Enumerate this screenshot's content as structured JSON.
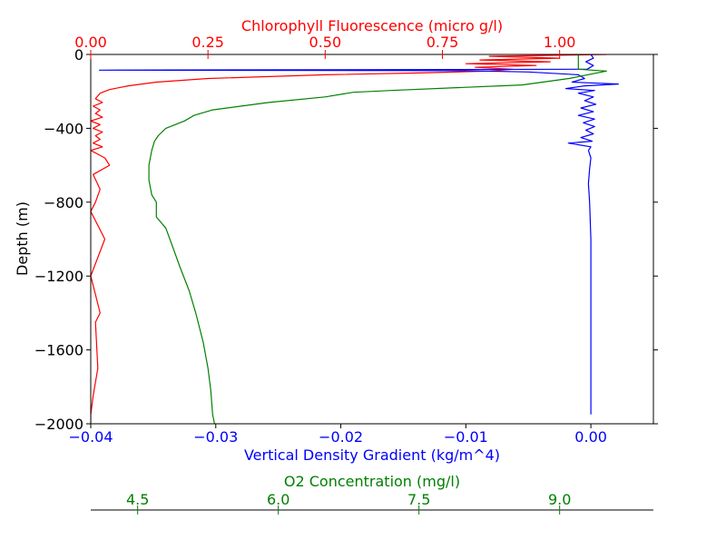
{
  "chart_data": {
    "type": "line",
    "title": "",
    "ylabel": "Depth (m)",
    "ylim": [
      -2000,
      0
    ],
    "yticks": [
      "0",
      "−400",
      "−800",
      "−1200",
      "−1600",
      "−2000"
    ],
    "yticks_values": [
      0,
      -400,
      -800,
      -1200,
      -1600,
      -2000
    ],
    "axes": {
      "top": {
        "label": "Chlorophyll Fluorescence (micro g/l)",
        "color": "#ff0000",
        "xlim": [
          0.0,
          1.2
        ],
        "ticks": [
          "0.00",
          "0.25",
          "0.50",
          "0.75",
          "1.00"
        ],
        "tick_values": [
          0.0,
          0.25,
          0.5,
          0.75,
          1.0
        ]
      },
      "bottom": {
        "label": "Vertical Density Gradient (kg/m^4)",
        "color": "#0000ff",
        "xlim": [
          -0.04,
          0.005
        ],
        "ticks": [
          "−0.04",
          "−0.03",
          "−0.02",
          "−0.01",
          "0.00"
        ],
        "tick_values": [
          -0.04,
          -0.03,
          -0.02,
          -0.01,
          0.0
        ]
      },
      "o2": {
        "label": "O2 Concentration (mg/l)",
        "color": "#008000",
        "xlim": [
          4.0,
          10.0
        ],
        "ticks": [
          "4.5",
          "6.0",
          "7.5",
          "9.0"
        ],
        "tick_values": [
          4.5,
          6.0,
          7.5,
          9.0
        ]
      }
    },
    "series": [
      {
        "axis": "top",
        "color": "#ff0000",
        "points": [
          [
            1.1,
            0
          ],
          [
            0.85,
            -10
          ],
          [
            1.0,
            -20
          ],
          [
            0.83,
            -30
          ],
          [
            0.98,
            -40
          ],
          [
            0.8,
            -50
          ],
          [
            0.95,
            -60
          ],
          [
            0.82,
            -70
          ],
          [
            0.9,
            -80
          ],
          [
            0.85,
            -90
          ],
          [
            0.7,
            -100
          ],
          [
            0.5,
            -110
          ],
          [
            0.25,
            -130
          ],
          [
            0.14,
            -150
          ],
          [
            0.08,
            -170
          ],
          [
            0.04,
            -190
          ],
          [
            0.02,
            -210
          ],
          [
            0.01,
            -240
          ],
          [
            0.025,
            -260
          ],
          [
            0.005,
            -280
          ],
          [
            0.02,
            -300
          ],
          [
            0.01,
            -320
          ],
          [
            0.025,
            -340
          ],
          [
            0.0,
            -360
          ],
          [
            0.02,
            -380
          ],
          [
            0.005,
            -400
          ],
          [
            0.025,
            -420
          ],
          [
            0.01,
            -440
          ],
          [
            0.02,
            -460
          ],
          [
            0.005,
            -480
          ],
          [
            0.025,
            -500
          ],
          [
            0.0,
            -520
          ],
          [
            0.03,
            -560
          ],
          [
            0.04,
            -600
          ],
          [
            0.005,
            -650
          ],
          [
            0.02,
            -730
          ],
          [
            0.01,
            -800
          ],
          [
            0.0,
            -850
          ],
          [
            0.03,
            -1000
          ],
          [
            0.0,
            -1200
          ],
          [
            0.01,
            -1300
          ],
          [
            0.02,
            -1400
          ],
          [
            0.01,
            -1450
          ],
          [
            0.015,
            -1700
          ],
          [
            0.005,
            -1850
          ],
          [
            0.0,
            -1950
          ],
          [
            0.0,
            -2000
          ]
        ]
      },
      {
        "axis": "bottom",
        "color": "#0000ff",
        "points": [
          [
            0.0,
            0
          ],
          [
            0.0002,
            -20
          ],
          [
            -0.0004,
            -40
          ],
          [
            0.0002,
            -60
          ],
          [
            -0.0003,
            -80
          ],
          [
            -0.0393,
            -85
          ],
          [
            -0.01,
            -88
          ],
          [
            -0.005,
            -95
          ],
          [
            -0.001,
            -110
          ],
          [
            -0.0005,
            -130
          ],
          [
            -0.0015,
            -150
          ],
          [
            0.0022,
            -160
          ],
          [
            -0.0005,
            -170
          ],
          [
            -0.002,
            -185
          ],
          [
            0.0003,
            -195
          ],
          [
            -0.001,
            -210
          ],
          [
            0.0002,
            -230
          ],
          [
            -0.0005,
            -250
          ],
          [
            0.0004,
            -270
          ],
          [
            -0.0008,
            -290
          ],
          [
            0.0002,
            -310
          ],
          [
            -0.001,
            -330
          ],
          [
            0.0003,
            -350
          ],
          [
            -0.0006,
            -370
          ],
          [
            0.0003,
            -390
          ],
          [
            -0.0004,
            -410
          ],
          [
            0.0002,
            -430
          ],
          [
            -0.0008,
            -450
          ],
          [
            0.0001,
            -470
          ],
          [
            -0.0018,
            -480
          ],
          [
            0.0,
            -500
          ],
          [
            -0.0002,
            -520
          ],
          [
            0.0,
            -560
          ],
          [
            -0.0001,
            -620
          ],
          [
            -0.0002,
            -700
          ],
          [
            -0.0001,
            -800
          ],
          [
            0.0,
            -1000
          ],
          [
            0.0,
            -1400
          ],
          [
            0.0,
            -1800
          ],
          [
            0.0,
            -1950
          ]
        ]
      },
      {
        "axis": "o2",
        "color": "#008000",
        "points": [
          [
            9.2,
            0
          ],
          [
            9.2,
            -50
          ],
          [
            9.2,
            -80
          ],
          [
            9.5,
            -90
          ],
          [
            9.1,
            -130
          ],
          [
            8.6,
            -165
          ],
          [
            7.2,
            -195
          ],
          [
            6.8,
            -205
          ],
          [
            6.5,
            -230
          ],
          [
            5.9,
            -260
          ],
          [
            5.3,
            -300
          ],
          [
            5.1,
            -330
          ],
          [
            5.0,
            -360
          ],
          [
            4.8,
            -400
          ],
          [
            4.72,
            -440
          ],
          [
            4.68,
            -470
          ],
          [
            4.65,
            -520
          ],
          [
            4.62,
            -600
          ],
          [
            4.62,
            -680
          ],
          [
            4.65,
            -760
          ],
          [
            4.7,
            -800
          ],
          [
            4.7,
            -880
          ],
          [
            4.8,
            -940
          ],
          [
            4.88,
            -1050
          ],
          [
            4.95,
            -1150
          ],
          [
            5.05,
            -1280
          ],
          [
            5.12,
            -1400
          ],
          [
            5.2,
            -1560
          ],
          [
            5.25,
            -1700
          ],
          [
            5.28,
            -1820
          ],
          [
            5.3,
            -1950
          ],
          [
            5.32,
            -2000
          ]
        ]
      }
    ]
  }
}
